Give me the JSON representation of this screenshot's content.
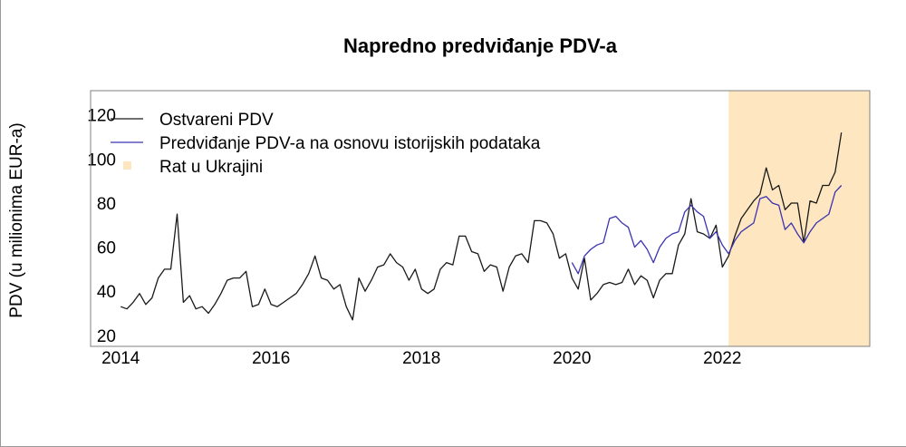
{
  "chart_data": {
    "type": "line",
    "title": "Napredno predviđanje PDV-a",
    "xlabel": "",
    "ylabel": "PDV (u milionima EUR-a)",
    "xlim": [
      2013.6,
      2023.96
    ],
    "ylim": [
      15,
      131
    ],
    "x_ticks": [
      2014,
      2016,
      2018,
      2020,
      2022
    ],
    "y_ticks": [
      20,
      40,
      60,
      80,
      100,
      120
    ],
    "grid": false,
    "legend_position": "top-left",
    "legend": [
      {
        "label": "Ostvareni PDV",
        "kind": "line",
        "color": "#1a1a1a"
      },
      {
        "label": "Predviđanje PDV-a na osnovu istorijskih podataka",
        "kind": "line",
        "color": "#3b33b0"
      },
      {
        "label": "Rat u Ukrajini",
        "kind": "area",
        "color": "#fde6c0"
      }
    ],
    "shaded_region": {
      "label": "Rat u Ukrajini",
      "start": "2022-02",
      "end": "axis-end",
      "color": "#fde6c0"
    },
    "series": [
      {
        "name": "Ostvareni PDV",
        "color": "#1a1a1a",
        "start": "2014-01",
        "frequency": "monthly",
        "values": [
          33,
          32,
          35,
          39,
          34,
          37,
          46,
          50,
          50,
          75,
          35,
          38,
          32,
          33,
          30,
          34,
          39,
          45,
          46,
          46,
          49,
          33,
          34,
          41,
          34,
          33,
          35,
          37,
          39,
          43,
          48,
          56,
          46,
          45,
          41,
          43,
          33,
          27,
          46,
          40,
          45,
          51,
          52,
          57,
          53,
          51,
          45,
          50,
          41,
          39,
          41,
          50,
          53,
          52,
          65,
          65,
          58,
          57,
          49,
          52,
          51,
          40,
          51,
          56,
          57,
          53,
          72,
          72,
          71,
          66,
          55,
          57,
          46,
          41,
          55,
          36,
          39,
          43,
          44,
          43,
          44,
          50,
          43,
          47,
          45,
          37,
          45,
          48,
          48,
          61,
          66,
          82,
          67,
          66,
          64,
          70,
          51,
          56,
          65,
          73,
          77,
          81,
          84,
          96,
          86,
          88,
          77,
          80,
          80,
          62,
          81,
          80,
          88,
          88,
          94,
          112
        ]
      },
      {
        "name": "Predviđanje PDV-a na osnovu istorijskih podataka",
        "color": "#3b33b0",
        "start": "2020-01",
        "frequency": "monthly",
        "values": [
          53,
          48,
          56,
          59,
          61,
          62,
          73,
          74,
          71,
          69,
          60,
          63,
          59,
          53,
          60,
          64,
          66,
          67,
          76,
          79,
          76,
          74,
          64,
          67,
          61,
          57,
          63,
          67,
          69,
          71,
          82,
          83,
          80,
          79,
          68,
          71,
          66,
          62,
          67,
          71,
          73,
          75,
          85,
          88
        ]
      }
    ]
  }
}
